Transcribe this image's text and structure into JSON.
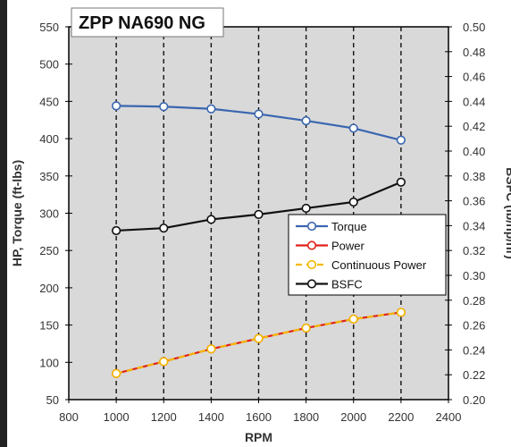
{
  "chart_data": {
    "type": "line",
    "title": "ZPP NA690 NG",
    "xlabel": "RPM",
    "ylabel": "HP, Torque (ft-lbs)",
    "y2label": "BSFC (lb/hp/hr)",
    "xlim": [
      800,
      2400
    ],
    "ylim": [
      50,
      550
    ],
    "y2lim": [
      0.2,
      0.5
    ],
    "x_ticks": [
      "800",
      "1000",
      "1200",
      "1400",
      "1600",
      "1800",
      "2000",
      "2200",
      "2400"
    ],
    "y_ticks": [
      "50",
      "100",
      "150",
      "200",
      "250",
      "300",
      "350",
      "400",
      "450",
      "500",
      "550"
    ],
    "y2_ticks": [
      "0.20",
      "0.22",
      "0.24",
      "0.26",
      "0.28",
      "0.30",
      "0.32",
      "0.34",
      "0.36",
      "0.38",
      "0.40",
      "0.42",
      "0.44",
      "0.46",
      "0.48",
      "0.50"
    ],
    "x": [
      1000,
      1200,
      1400,
      1600,
      1800,
      2000,
      2200
    ],
    "grid": "vertical dashed",
    "legend_position": "right-middle",
    "series": [
      {
        "name": "Torque",
        "axis": "left",
        "values": [
          444,
          443,
          440,
          433,
          424,
          414,
          398
        ],
        "color": "#3a66b0",
        "dash": "solid"
      },
      {
        "name": "Power",
        "axis": "left",
        "values": [
          85,
          101,
          118,
          132,
          146,
          158,
          167
        ],
        "color": "#e0201a",
        "dash": "solid"
      },
      {
        "name": "Continuous Power",
        "axis": "left",
        "values": [
          85,
          101,
          118,
          132,
          146,
          158,
          167
        ],
        "color": "#f5b800",
        "dash": "dashed"
      },
      {
        "name": "BSFC",
        "axis": "right",
        "values": [
          0.336,
          0.338,
          0.345,
          0.349,
          0.354,
          0.359,
          0.375
        ],
        "color": "#111111",
        "dash": "solid"
      }
    ]
  },
  "colors": {
    "plot_background": "#d9d9d9",
    "gridline": "#111111"
  }
}
